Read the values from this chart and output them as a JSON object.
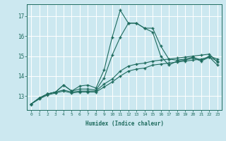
{
  "xlabel": "Humidex (Indice chaleur)",
  "bg_color": "#cce8f0",
  "line_color": "#1e6b5e",
  "grid_color": "#ffffff",
  "xlim": [
    -0.5,
    23.5
  ],
  "ylim": [
    12.3,
    17.6
  ],
  "yticks": [
    13,
    14,
    15,
    16,
    17
  ],
  "xticks": [
    0,
    1,
    2,
    3,
    4,
    5,
    6,
    7,
    8,
    9,
    10,
    11,
    12,
    13,
    14,
    15,
    16,
    17,
    18,
    19,
    20,
    21,
    22,
    23
  ],
  "line1_y": [
    12.6,
    12.9,
    13.1,
    13.2,
    13.55,
    13.25,
    13.5,
    13.55,
    13.4,
    14.3,
    15.95,
    17.3,
    16.65,
    16.65,
    16.4,
    16.4,
    15.5,
    14.85,
    14.8,
    14.85,
    14.95,
    14.8,
    15.0,
    14.85
  ],
  "line2_y": [
    12.6,
    12.9,
    13.1,
    13.2,
    13.55,
    13.25,
    13.35,
    13.35,
    13.3,
    13.9,
    15.05,
    15.95,
    16.65,
    16.65,
    16.4,
    16.2,
    15.0,
    14.55,
    14.75,
    14.8,
    14.9,
    14.75,
    14.95,
    14.75
  ],
  "line3_y": [
    12.6,
    12.9,
    13.1,
    13.2,
    13.3,
    13.2,
    13.25,
    13.25,
    13.25,
    13.6,
    13.85,
    14.25,
    14.5,
    14.6,
    14.65,
    14.75,
    14.8,
    14.85,
    14.9,
    14.95,
    15.0,
    15.05,
    15.1,
    14.7
  ],
  "line4_y": [
    12.6,
    12.85,
    13.05,
    13.15,
    13.25,
    13.15,
    13.2,
    13.2,
    13.2,
    13.45,
    13.7,
    14.0,
    14.25,
    14.35,
    14.4,
    14.55,
    14.6,
    14.65,
    14.7,
    14.75,
    14.8,
    14.85,
    14.95,
    14.55
  ]
}
